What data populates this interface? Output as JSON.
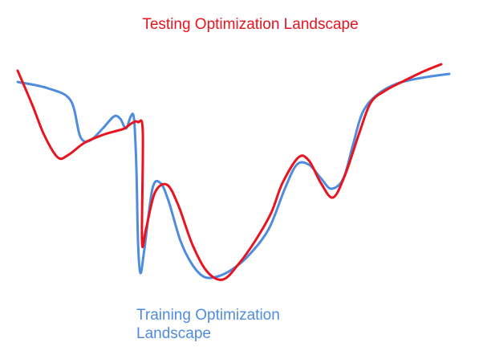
{
  "labels": {
    "testing": "Testing Optimization Landscape",
    "training": "Training Optimization Landscape"
  },
  "colors": {
    "testing": "#e8141f",
    "training": "#4f8cdd",
    "background": "#ffffff"
  },
  "series": [
    {
      "key": "training",
      "name": "Training Optimization Landscape",
      "color": "#4f8cdd",
      "points": [
        [
          22,
          102
        ],
        [
          60,
          110
        ],
        [
          88,
          125
        ],
        [
          100,
          170
        ],
        [
          112,
          175
        ],
        [
          128,
          160
        ],
        [
          142,
          145
        ],
        [
          150,
          148
        ],
        [
          157,
          160
        ],
        [
          163,
          145
        ],
        [
          167,
          148
        ],
        [
          170,
          210
        ],
        [
          172,
          300
        ],
        [
          175,
          340
        ],
        [
          180,
          310
        ],
        [
          190,
          235
        ],
        [
          200,
          228
        ],
        [
          210,
          250
        ],
        [
          225,
          300
        ],
        [
          240,
          330
        ],
        [
          255,
          345
        ],
        [
          272,
          344
        ],
        [
          290,
          335
        ],
        [
          310,
          318
        ],
        [
          335,
          285
        ],
        [
          355,
          235
        ],
        [
          370,
          205
        ],
        [
          385,
          205
        ],
        [
          400,
          222
        ],
        [
          413,
          235
        ],
        [
          428,
          222
        ],
        [
          440,
          180
        ],
        [
          452,
          140
        ],
        [
          470,
          118
        ],
        [
          495,
          104
        ],
        [
          525,
          97
        ],
        [
          560,
          92
        ]
      ]
    },
    {
      "key": "testing",
      "name": "Testing Optimization Landscape",
      "color": "#e8141f",
      "points": [
        [
          22,
          88
        ],
        [
          40,
          130
        ],
        [
          55,
          168
        ],
        [
          72,
          196
        ],
        [
          85,
          193
        ],
        [
          105,
          178
        ],
        [
          128,
          168
        ],
        [
          145,
          163
        ],
        [
          155,
          160
        ],
        [
          165,
          153
        ],
        [
          172,
          152
        ],
        [
          178,
          165
        ],
        [
          177,
          300
        ],
        [
          182,
          285
        ],
        [
          193,
          240
        ],
        [
          208,
          230
        ],
        [
          222,
          255
        ],
        [
          240,
          305
        ],
        [
          258,
          338
        ],
        [
          278,
          348
        ],
        [
          298,
          328
        ],
        [
          318,
          300
        ],
        [
          338,
          265
        ],
        [
          352,
          228
        ],
        [
          372,
          196
        ],
        [
          385,
          200
        ],
        [
          400,
          228
        ],
        [
          415,
          246
        ],
        [
          430,
          218
        ],
        [
          448,
          165
        ],
        [
          462,
          128
        ],
        [
          480,
          113
        ],
        [
          505,
          100
        ],
        [
          530,
          88
        ],
        [
          550,
          80
        ]
      ]
    }
  ]
}
